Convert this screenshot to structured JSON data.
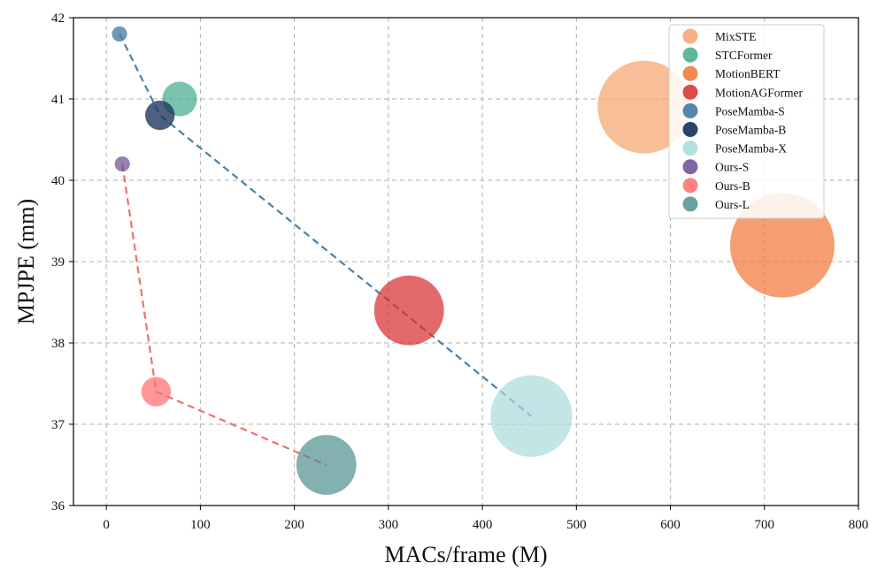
{
  "chart_data": {
    "type": "scatter",
    "title": "",
    "xlabel": "MACs/frame (M)",
    "ylabel": "MPJPE (mm)",
    "xlim": [
      -35,
      800
    ],
    "ylim": [
      36,
      42
    ],
    "xticks": [
      0,
      100,
      200,
      300,
      400,
      500,
      600,
      700,
      800
    ],
    "yticks": [
      36,
      37,
      38,
      39,
      40,
      41,
      42
    ],
    "grid": true,
    "legend_position": "top-right",
    "series": [
      {
        "name": "MixSTE",
        "color": "#f4a36c",
        "opacity": 0.7,
        "points": [
          {
            "x": 572,
            "y": 40.9,
            "size": 33.6
          }
        ]
      },
      {
        "name": "STCFormer",
        "color": "#43aa8b",
        "opacity": 0.7,
        "points": [
          {
            "x": 78,
            "y": 41.0,
            "size": 4.7
          }
        ]
      },
      {
        "name": "MotionBERT",
        "color": "#f07535",
        "opacity": 0.7,
        "points": [
          {
            "x": 719,
            "y": 39.2,
            "size": 42.5
          }
        ]
      },
      {
        "name": "MotionAGFormer",
        "color": "#d62b2b",
        "opacity": 0.7,
        "points": [
          {
            "x": 322,
            "y": 38.4,
            "size": 19.0
          }
        ]
      },
      {
        "name": "PoseMamba-S",
        "color": "#4a7fa5",
        "opacity": 0.8,
        "points": [
          {
            "x": 14,
            "y": 41.8,
            "size": 0.9
          }
        ]
      },
      {
        "name": "PoseMamba-B",
        "color": "#1f3a5f",
        "opacity": 0.8,
        "points": [
          {
            "x": 57,
            "y": 40.8,
            "size": 3.4
          }
        ]
      },
      {
        "name": "PoseMamba-X",
        "color": "#a8dadc",
        "opacity": 0.7,
        "points": [
          {
            "x": 452,
            "y": 37.1,
            "size": 26.0
          }
        ]
      },
      {
        "name": "Ours-S",
        "color": "#6a4c93",
        "opacity": 0.7,
        "points": [
          {
            "x": 17,
            "y": 40.2,
            "size": 0.9
          }
        ]
      },
      {
        "name": "Ours-B",
        "color": "#ff6b6b",
        "opacity": 0.7,
        "points": [
          {
            "x": 53,
            "y": 37.4,
            "size": 3.4
          }
        ]
      },
      {
        "name": "Ours-L",
        "color": "#4d908e",
        "opacity": 0.7,
        "points": [
          {
            "x": 234,
            "y": 36.5,
            "size": 14.0
          }
        ]
      }
    ],
    "lines": [
      {
        "color": "#4a7fa5",
        "style": "dashed",
        "points": [
          [
            14,
            41.8
          ],
          [
            57,
            40.8
          ],
          [
            452,
            37.1
          ]
        ]
      },
      {
        "color": "#f07070",
        "style": "dashed",
        "points": [
          [
            17,
            40.2
          ],
          [
            53,
            37.4
          ],
          [
            234,
            36.5
          ]
        ]
      }
    ]
  }
}
